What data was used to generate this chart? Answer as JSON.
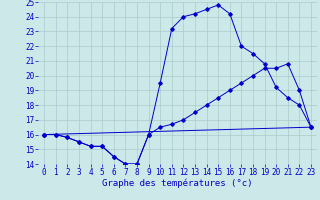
{
  "xlabel": "Graphe des températures (°c)",
  "ylabel": "",
  "background_color": "#cce8e8",
  "grid_color": "#aacccc",
  "line_color": "#0000cc",
  "xlim": [
    -0.5,
    23.5
  ],
  "ylim": [
    14,
    25
  ],
  "yticks": [
    14,
    15,
    16,
    17,
    18,
    19,
    20,
    21,
    22,
    23,
    24,
    25
  ],
  "xticks": [
    0,
    1,
    2,
    3,
    4,
    5,
    6,
    7,
    8,
    9,
    10,
    11,
    12,
    13,
    14,
    15,
    16,
    17,
    18,
    19,
    20,
    21,
    22,
    23
  ],
  "series": [
    {
      "x": [
        0,
        1,
        2,
        3,
        4,
        5,
        6,
        7,
        8,
        9,
        10,
        11,
        12,
        13,
        14,
        15,
        16,
        17,
        18,
        19,
        20,
        21,
        22,
        23
      ],
      "y": [
        16.0,
        16.0,
        15.8,
        15.5,
        15.2,
        15.2,
        14.5,
        14.0,
        14.0,
        16.0,
        16.5,
        16.7,
        17.0,
        17.5,
        18.0,
        18.5,
        19.0,
        19.5,
        20.0,
        20.5,
        20.5,
        20.8,
        19.0,
        16.5
      ]
    },
    {
      "x": [
        0,
        1,
        2,
        3,
        4,
        5,
        6,
        7,
        8,
        9,
        10,
        11,
        12,
        13,
        14,
        15,
        16,
        17,
        18,
        19,
        20,
        21,
        22,
        23
      ],
      "y": [
        16.0,
        16.0,
        15.8,
        15.5,
        15.2,
        15.2,
        14.5,
        14.0,
        14.0,
        16.0,
        19.5,
        23.2,
        24.0,
        24.2,
        24.5,
        24.8,
        24.2,
        22.0,
        21.5,
        20.8,
        19.2,
        18.5,
        18.0,
        16.5
      ]
    },
    {
      "x": [
        0,
        23
      ],
      "y": [
        16.0,
        16.5
      ]
    }
  ],
  "tick_fontsize": 5.5,
  "xlabel_fontsize": 6.5
}
